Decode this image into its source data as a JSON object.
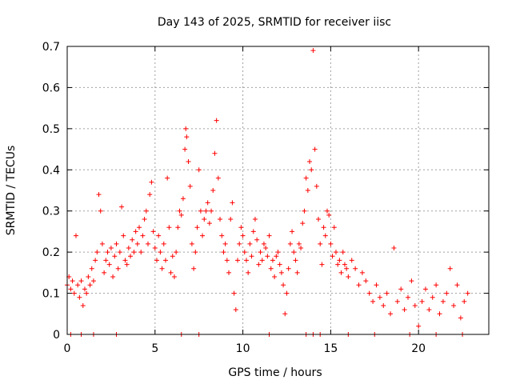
{
  "chart_data": {
    "type": "scatter",
    "title": "Day 143 of 2025, SRMTID for receiver iisc",
    "xlabel": "GPS time / hours",
    "ylabel": "SRMTID / TECUs",
    "xlim": [
      0,
      24
    ],
    "ylim": [
      0,
      0.7
    ],
    "xticks": [
      0,
      5,
      10,
      15,
      20
    ],
    "yticks": [
      0,
      0.1,
      0.2,
      0.3,
      0.4,
      0.5,
      0.6,
      0.7
    ],
    "xtick_labels": [
      "0",
      "5",
      "10",
      "15",
      "20"
    ],
    "ytick_labels": [
      "0",
      "0.1",
      "0.2",
      "0.3",
      "0.4",
      "0.5",
      "0.6",
      "0.7"
    ],
    "grid": true,
    "marker": "+",
    "color": "#ff0000",
    "series": [
      {
        "name": "SRMTID",
        "points": [
          [
            0.0,
            0.12
          ],
          [
            0.1,
            0.14
          ],
          [
            0.2,
            0.11
          ],
          [
            0.3,
            0.13
          ],
          [
            0.4,
            0.1
          ],
          [
            0.5,
            0.24
          ],
          [
            0.6,
            0.12
          ],
          [
            0.7,
            0.09
          ],
          [
            0.8,
            0.13
          ],
          [
            0.9,
            0.07
          ],
          [
            1.0,
            0.11
          ],
          [
            1.1,
            0.1
          ],
          [
            1.2,
            0.14
          ],
          [
            1.3,
            0.12
          ],
          [
            1.4,
            0.16
          ],
          [
            1.5,
            0.13
          ],
          [
            1.6,
            0.18
          ],
          [
            1.7,
            0.2
          ],
          [
            1.8,
            0.34
          ],
          [
            1.9,
            0.3
          ],
          [
            2.0,
            0.22
          ],
          [
            2.1,
            0.15
          ],
          [
            2.2,
            0.18
          ],
          [
            2.3,
            0.2
          ],
          [
            2.4,
            0.17
          ],
          [
            2.5,
            0.21
          ],
          [
            2.6,
            0.14
          ],
          [
            2.7,
            0.19
          ],
          [
            2.8,
            0.22
          ],
          [
            2.9,
            0.16
          ],
          [
            3.0,
            0.2
          ],
          [
            3.1,
            0.31
          ],
          [
            3.2,
            0.24
          ],
          [
            3.3,
            0.18
          ],
          [
            3.4,
            0.17
          ],
          [
            3.5,
            0.21
          ],
          [
            3.6,
            0.19
          ],
          [
            3.7,
            0.23
          ],
          [
            3.8,
            0.2
          ],
          [
            3.9,
            0.25
          ],
          [
            4.0,
            0.22
          ],
          [
            4.1,
            0.26
          ],
          [
            4.2,
            0.2
          ],
          [
            4.3,
            0.24
          ],
          [
            4.4,
            0.28
          ],
          [
            4.5,
            0.3
          ],
          [
            4.6,
            0.22
          ],
          [
            4.7,
            0.34
          ],
          [
            4.8,
            0.37
          ],
          [
            4.9,
            0.25
          ],
          [
            5.0,
            0.21
          ],
          [
            5.1,
            0.18
          ],
          [
            5.2,
            0.24
          ],
          [
            5.3,
            0.2
          ],
          [
            5.4,
            0.16
          ],
          [
            5.5,
            0.22
          ],
          [
            5.6,
            0.18
          ],
          [
            5.7,
            0.38
          ],
          [
            5.8,
            0.26
          ],
          [
            5.9,
            0.15
          ],
          [
            6.0,
            0.19
          ],
          [
            6.1,
            0.14
          ],
          [
            6.2,
            0.2
          ],
          [
            6.3,
            0.26
          ],
          [
            6.4,
            0.3
          ],
          [
            6.5,
            0.29
          ],
          [
            6.6,
            0.33
          ],
          [
            6.7,
            0.45
          ],
          [
            6.75,
            0.5
          ],
          [
            6.8,
            0.48
          ],
          [
            6.9,
            0.42
          ],
          [
            7.0,
            0.36
          ],
          [
            7.1,
            0.22
          ],
          [
            7.2,
            0.16
          ],
          [
            7.3,
            0.2
          ],
          [
            7.4,
            0.26
          ],
          [
            7.5,
            0.4
          ],
          [
            7.6,
            0.3
          ],
          [
            7.7,
            0.24
          ],
          [
            7.8,
            0.28
          ],
          [
            7.9,
            0.3
          ],
          [
            8.0,
            0.32
          ],
          [
            8.1,
            0.27
          ],
          [
            8.2,
            0.3
          ],
          [
            8.3,
            0.35
          ],
          [
            8.4,
            0.44
          ],
          [
            8.5,
            0.52
          ],
          [
            8.6,
            0.38
          ],
          [
            8.7,
            0.28
          ],
          [
            8.8,
            0.24
          ],
          [
            8.9,
            0.2
          ],
          [
            9.0,
            0.22
          ],
          [
            9.1,
            0.18
          ],
          [
            9.2,
            0.15
          ],
          [
            9.3,
            0.28
          ],
          [
            9.4,
            0.32
          ],
          [
            9.5,
            0.1
          ],
          [
            9.6,
            0.06
          ],
          [
            9.7,
            0.18
          ],
          [
            9.8,
            0.22
          ],
          [
            9.9,
            0.26
          ],
          [
            10.0,
            0.24
          ],
          [
            10.1,
            0.2
          ],
          [
            10.2,
            0.18
          ],
          [
            10.3,
            0.15
          ],
          [
            10.4,
            0.22
          ],
          [
            10.5,
            0.19
          ],
          [
            10.6,
            0.25
          ],
          [
            10.7,
            0.28
          ],
          [
            10.8,
            0.23
          ],
          [
            10.9,
            0.17
          ],
          [
            11.0,
            0.2
          ],
          [
            11.1,
            0.18
          ],
          [
            11.2,
            0.22
          ],
          [
            11.3,
            0.21
          ],
          [
            11.4,
            0.19
          ],
          [
            11.5,
            0.24
          ],
          [
            11.6,
            0.16
          ],
          [
            11.7,
            0.18
          ],
          [
            11.8,
            0.14
          ],
          [
            11.9,
            0.19
          ],
          [
            12.0,
            0.2
          ],
          [
            12.1,
            0.17
          ],
          [
            12.2,
            0.15
          ],
          [
            12.3,
            0.12
          ],
          [
            12.4,
            0.05
          ],
          [
            12.5,
            0.1
          ],
          [
            12.6,
            0.16
          ],
          [
            12.7,
            0.22
          ],
          [
            12.8,
            0.25
          ],
          [
            12.9,
            0.2
          ],
          [
            13.0,
            0.18
          ],
          [
            13.1,
            0.15
          ],
          [
            13.2,
            0.22
          ],
          [
            13.3,
            0.21
          ],
          [
            13.4,
            0.27
          ],
          [
            13.5,
            0.3
          ],
          [
            13.6,
            0.38
          ],
          [
            13.7,
            0.35
          ],
          [
            13.8,
            0.42
          ],
          [
            13.9,
            0.4
          ],
          [
            14.0,
            0.69
          ],
          [
            14.1,
            0.45
          ],
          [
            14.2,
            0.36
          ],
          [
            14.3,
            0.28
          ],
          [
            14.4,
            0.22
          ],
          [
            14.5,
            0.17
          ],
          [
            14.6,
            0.26
          ],
          [
            14.7,
            0.24
          ],
          [
            14.8,
            0.3
          ],
          [
            14.9,
            0.29
          ],
          [
            15.0,
            0.22
          ],
          [
            15.1,
            0.19
          ],
          [
            15.2,
            0.26
          ],
          [
            15.3,
            0.2
          ],
          [
            15.4,
            0.17
          ],
          [
            15.5,
            0.18
          ],
          [
            15.6,
            0.15
          ],
          [
            15.7,
            0.2
          ],
          [
            15.8,
            0.17
          ],
          [
            15.9,
            0.16
          ],
          [
            16.0,
            0.14
          ],
          [
            16.2,
            0.18
          ],
          [
            16.4,
            0.16
          ],
          [
            16.6,
            0.12
          ],
          [
            16.8,
            0.15
          ],
          [
            17.0,
            0.13
          ],
          [
            17.2,
            0.1
          ],
          [
            17.4,
            0.08
          ],
          [
            17.6,
            0.12
          ],
          [
            17.8,
            0.09
          ],
          [
            18.0,
            0.07
          ],
          [
            18.2,
            0.1
          ],
          [
            18.4,
            0.05
          ],
          [
            18.6,
            0.21
          ],
          [
            18.8,
            0.08
          ],
          [
            19.0,
            0.11
          ],
          [
            19.2,
            0.06
          ],
          [
            19.4,
            0.09
          ],
          [
            19.6,
            0.13
          ],
          [
            19.8,
            0.07
          ],
          [
            20.0,
            0.02
          ],
          [
            20.2,
            0.08
          ],
          [
            20.4,
            0.11
          ],
          [
            20.6,
            0.06
          ],
          [
            20.8,
            0.09
          ],
          [
            21.0,
            0.12
          ],
          [
            21.2,
            0.05
          ],
          [
            21.4,
            0.08
          ],
          [
            21.6,
            0.1
          ],
          [
            21.8,
            0.16
          ],
          [
            22.0,
            0.07
          ],
          [
            22.2,
            0.12
          ],
          [
            22.4,
            0.04
          ],
          [
            22.6,
            0.08
          ],
          [
            22.8,
            0.1
          ],
          [
            0.2,
            0.0
          ],
          [
            0.8,
            0.0
          ],
          [
            1.5,
            0.0
          ],
          [
            2.8,
            0.0
          ],
          [
            6.5,
            0.0
          ],
          [
            7.5,
            0.0
          ],
          [
            11.5,
            0.0
          ],
          [
            13.6,
            0.0
          ],
          [
            14.0,
            0.0
          ],
          [
            14.4,
            0.0
          ],
          [
            16.0,
            0.0
          ],
          [
            17.5,
            0.0
          ],
          [
            19.5,
            0.0
          ],
          [
            21.0,
            0.0
          ],
          [
            22.5,
            0.0
          ]
        ]
      }
    ]
  }
}
